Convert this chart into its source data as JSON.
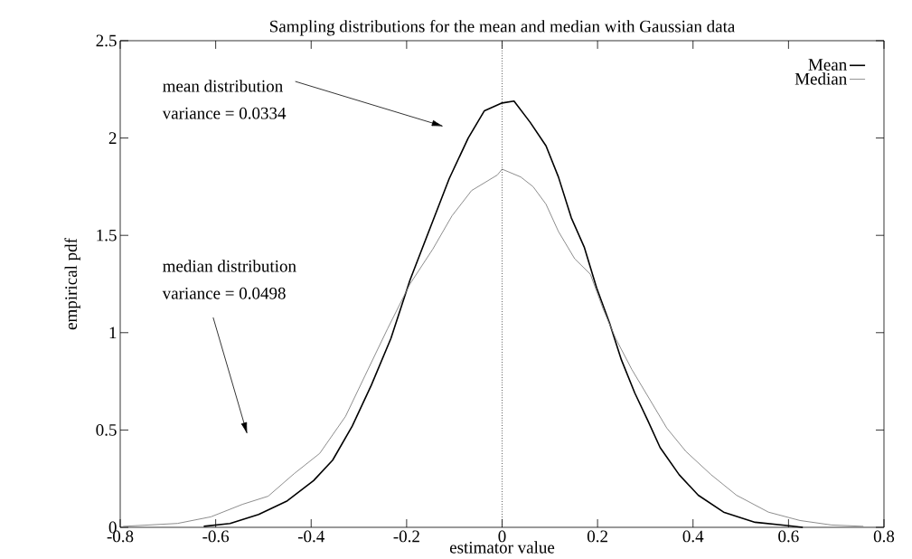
{
  "chart_data": {
    "type": "line",
    "title": "Sampling distributions for the mean and median with Gaussian data",
    "xlabel": "estimator value",
    "ylabel": "empirical pdf",
    "xlim": [
      -0.8,
      0.8
    ],
    "xticks": [
      -0.8,
      -0.6,
      -0.4,
      -0.2,
      0,
      0.2,
      0.4,
      0.6,
      0.8
    ],
    "ylim": [
      0,
      2.5
    ],
    "yticks": [
      0,
      0.5,
      1,
      1.5,
      2,
      2.5
    ],
    "legend": "top right",
    "grid": false,
    "marker": "none",
    "ref_lines": [
      {
        "axis": "x",
        "value": 0,
        "line_style": "dotted"
      }
    ],
    "annotations": [
      "mean distribution",
      "variance = 0.0334",
      "median distribution",
      "variance = 0.0498"
    ],
    "series": [
      {
        "name": "Mean",
        "color": "#000000",
        "line_style": "solid",
        "x": [
          -0.625,
          -0.57,
          -0.51,
          -0.45,
          -0.395,
          -0.355,
          -0.314,
          -0.274,
          -0.233,
          -0.193,
          -0.152,
          -0.111,
          -0.071,
          -0.037,
          0,
          0.025,
          0.059,
          0.092,
          0.118,
          0.145,
          0.172,
          0.198,
          0.225,
          0.25,
          0.278,
          0.305,
          0.331,
          0.371,
          0.411,
          0.464,
          0.53,
          0.597,
          0.63
        ],
        "values": [
          0.005,
          0.02,
          0.066,
          0.136,
          0.24,
          0.345,
          0.52,
          0.73,
          0.97,
          1.27,
          1.53,
          1.79,
          2.0,
          2.14,
          2.18,
          2.19,
          2.08,
          1.96,
          1.8,
          1.59,
          1.44,
          1.23,
          1.05,
          0.86,
          0.69,
          0.55,
          0.41,
          0.27,
          0.165,
          0.078,
          0.026,
          0.009,
          0
        ]
      },
      {
        "name": "Median",
        "color": "#808080",
        "line_style": "solid",
        "x": [
          -0.794,
          -0.68,
          -0.61,
          -0.544,
          -0.49,
          -0.436,
          -0.382,
          -0.328,
          -0.287,
          -0.24,
          -0.193,
          -0.145,
          -0.105,
          -0.064,
          -0.01,
          0,
          0.039,
          0.065,
          0.092,
          0.118,
          0.152,
          0.185,
          0.212,
          0.238,
          0.272,
          0.311,
          0.345,
          0.385,
          0.438,
          0.491,
          0.558,
          0.624,
          0.69,
          0.757
        ],
        "values": [
          0.005,
          0.02,
          0.054,
          0.118,
          0.16,
          0.275,
          0.38,
          0.57,
          0.78,
          1.02,
          1.25,
          1.43,
          1.6,
          1.73,
          1.81,
          1.84,
          1.8,
          1.75,
          1.66,
          1.52,
          1.38,
          1.3,
          1.12,
          0.97,
          0.81,
          0.65,
          0.51,
          0.39,
          0.27,
          0.165,
          0.078,
          0.035,
          0.012,
          0.005
        ]
      }
    ]
  }
}
